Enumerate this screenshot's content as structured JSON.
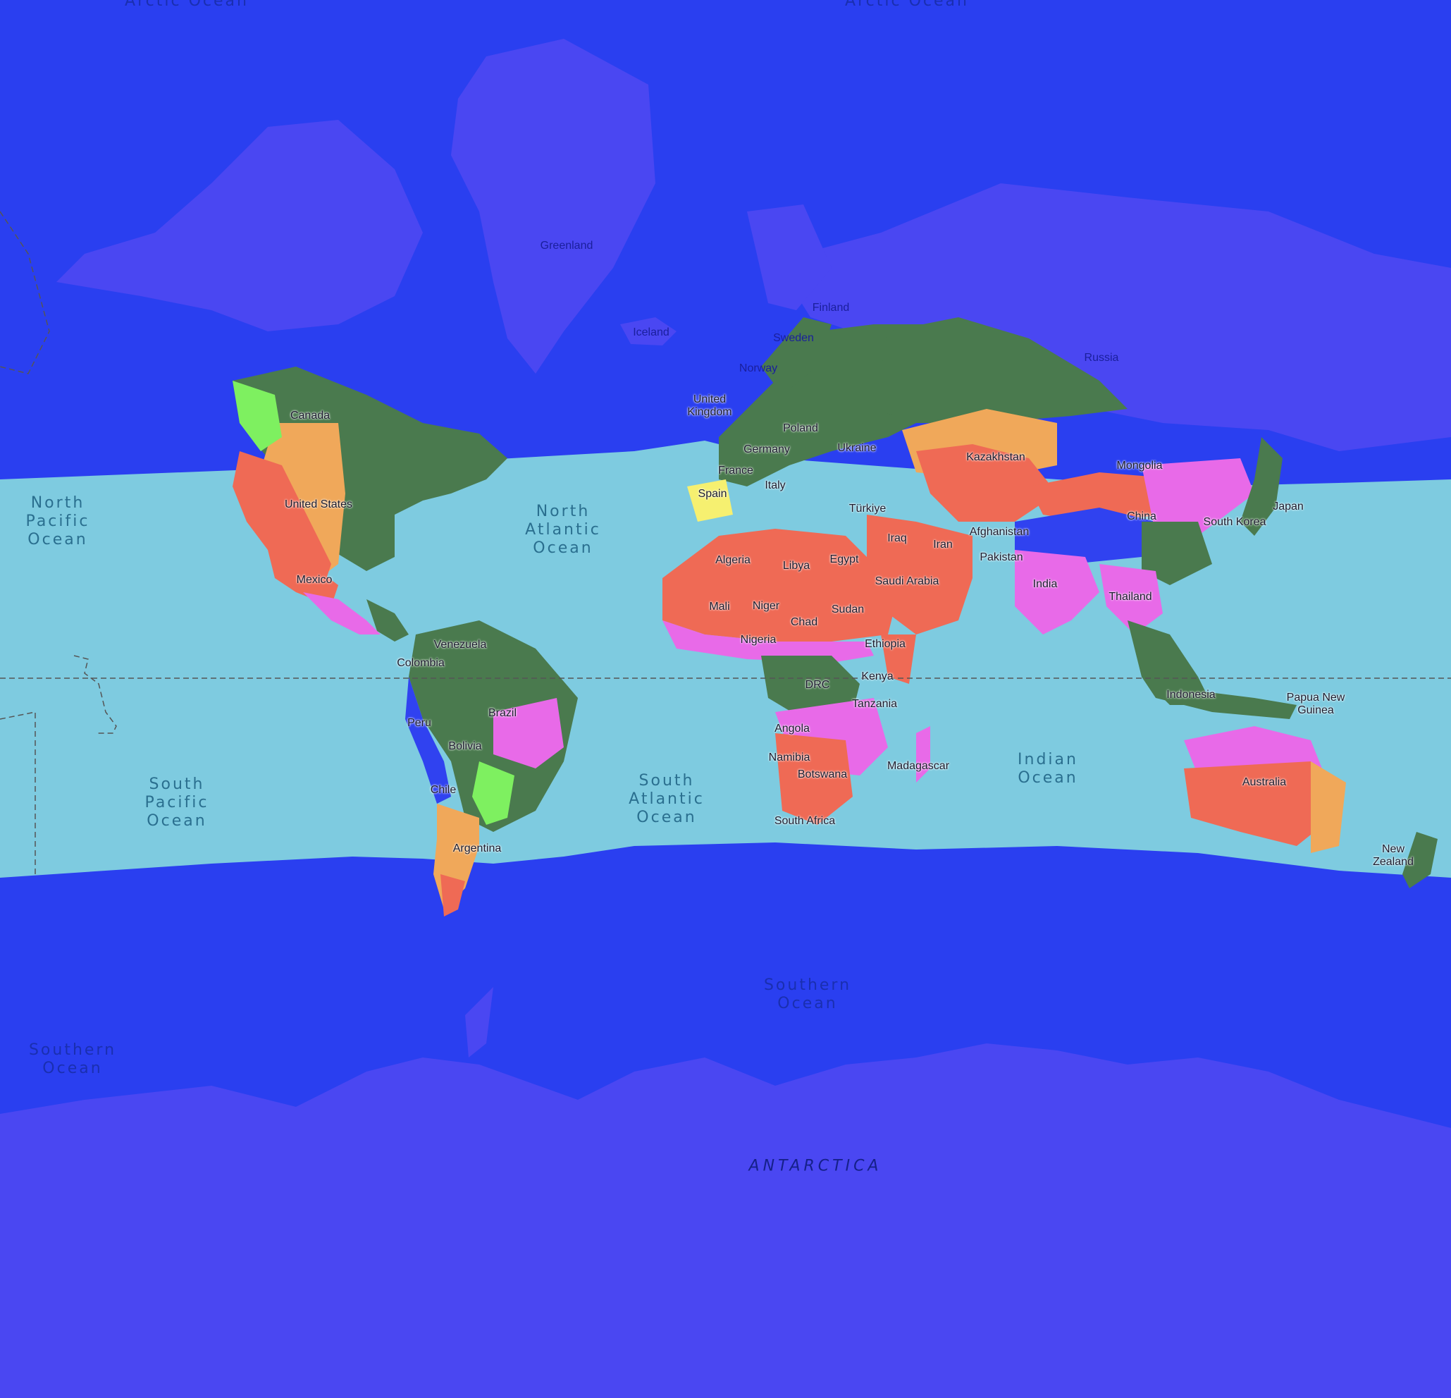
{
  "map": {
    "colors": {
      "polar_ocean": "#2a3ff0",
      "polar_land": "#4a47f2",
      "band_ocean": "#7ecbe0",
      "forest": "#4a7a4e",
      "desert": "#ef6a55",
      "steppe": "#f0a85a",
      "savanna": "#e86ae8",
      "grass": "#7ef060",
      "dry": "#f6f070",
      "highland": "#3042f0"
    },
    "oceans": {
      "arctic_west": "Arctic Ocean",
      "arctic_east": "Arctic Ocean",
      "north_pacific": "North\nPacific\nOcean",
      "north_atlantic": "North\nAtlantic\nOcean",
      "south_pacific": "South\nPacific\nOcean",
      "south_atlantic": "South\nAtlantic\nOcean",
      "indian": "Indian\nOcean",
      "southern_center": "Southern\nOcean",
      "southern_west": "Southern\nOcean"
    },
    "antarctica": "ANTARCTICA",
    "countries": {
      "greenland": "Greenland",
      "iceland": "Iceland",
      "finland": "Finland",
      "sweden": "Sweden",
      "norway": "Norway",
      "russia": "Russia",
      "united_kingdom": "United\nKingdom",
      "poland": "Poland",
      "germany": "Germany",
      "ukraine": "Ukraine",
      "kazakhstan": "Kazakhstan",
      "mongolia": "Mongolia",
      "france": "France",
      "italy": "Italy",
      "spain": "Spain",
      "turkiye": "Türkiye",
      "canada": "Canada",
      "united_states": "United States",
      "mexico": "Mexico",
      "japan": "Japan",
      "south_korea": "South Korea",
      "china": "China",
      "afghanistan": "Afghanistan",
      "iraq": "Iraq",
      "iran": "Iran",
      "pakistan": "Pakistan",
      "algeria": "Algeria",
      "libya": "Libya",
      "egypt": "Egypt",
      "saudi_arabia": "Saudi Arabia",
      "india": "India",
      "thailand": "Thailand",
      "mali": "Mali",
      "niger": "Niger",
      "sudan": "Sudan",
      "chad": "Chad",
      "nigeria": "Nigeria",
      "ethiopia": "Ethiopia",
      "venezuela": "Venezuela",
      "colombia": "Colombia",
      "drc": "DRC",
      "kenya": "Kenya",
      "indonesia": "Indonesia",
      "papua_new_guinea": "Papua New\nGuinea",
      "tanzania": "Tanzania",
      "brazil": "Brazil",
      "peru": "Peru",
      "angola": "Angola",
      "bolivia": "Bolivia",
      "namibia": "Namibia",
      "madagascar": "Madagascar",
      "botswana": "Botswana",
      "chile": "Chile",
      "australia": "Australia",
      "south_africa": "South Africa",
      "argentina": "Argentina",
      "new_zealand": "New\nZealand"
    }
  }
}
